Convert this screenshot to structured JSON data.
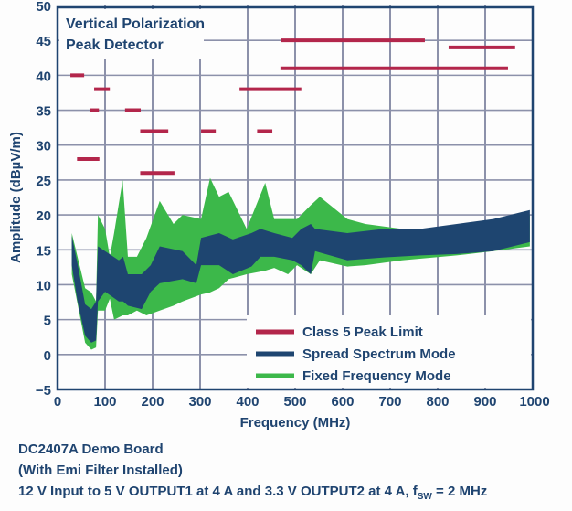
{
  "chart_data": {
    "type": "line",
    "title_lines": [
      "Vertical Polarization",
      "Peak Detector"
    ],
    "xlabel": "Frequency (MHz)",
    "ylabel": "Amplitude (dBµV/m)",
    "xlim": [
      0,
      1000
    ],
    "ylim": [
      -5,
      50
    ],
    "xticks": [
      0,
      100,
      200,
      300,
      400,
      500,
      600,
      700,
      800,
      900,
      1000
    ],
    "yticks": [
      -5,
      0,
      5,
      10,
      15,
      20,
      25,
      30,
      35,
      40,
      45,
      50
    ],
    "ytick_labels": [
      "−5",
      "0",
      "5",
      "10",
      "15",
      "20",
      "25",
      "30",
      "35",
      "40",
      "45",
      "50"
    ],
    "grid": true,
    "legend_position": "bottom-right",
    "colors": {
      "limit": "#b3264b",
      "spread": "#1e4570",
      "fixed": "#3cb84a",
      "grid": "#8c91aa",
      "text": "#1f4470"
    },
    "series": [
      {
        "name": "Class 5 Peak Limit",
        "type": "segments",
        "segments": [
          {
            "f": [
              27,
              56
            ],
            "y": 40
          },
          {
            "f": [
              41,
              88
            ],
            "y": 28
          },
          {
            "f": [
              68,
              87
            ],
            "y": 35
          },
          {
            "f": [
              77,
              110
            ],
            "y": 38
          },
          {
            "f": [
              142,
              175
            ],
            "y": 35
          },
          {
            "f": [
              174,
              233
            ],
            "y": 32
          },
          {
            "f": [
              174,
              246
            ],
            "y": 26
          },
          {
            "f": [
              302,
              333
            ],
            "y": 32
          },
          {
            "f": [
              420,
              452
            ],
            "y": 32
          },
          {
            "f": [
              383,
              513
            ],
            "y": 38
          },
          {
            "f": [
              471,
              773
            ],
            "y": 45
          },
          {
            "f": [
              469,
              948
            ],
            "y": 41
          },
          {
            "f": [
              823,
              963
            ],
            "y": 44
          }
        ]
      },
      {
        "name": "Spread Spectrum Mode",
        "type": "band",
        "f": [
          30,
          42,
          58,
          71,
          81,
          85,
          100,
          129,
          138,
          148,
          177,
          196,
          215,
          263,
          292,
          302,
          340,
          369,
          408,
          427,
          456,
          494,
          513,
          533,
          542,
          610,
          687,
          763,
          840,
          917,
          994
        ],
        "low": [
          12.8,
          7.6,
          2.7,
          1.7,
          2,
          7.6,
          9,
          7.6,
          7.6,
          7,
          6.5,
          9,
          10.2,
          10.8,
          10.2,
          12.8,
          12.8,
          11.5,
          12.6,
          14,
          14,
          13.5,
          12.8,
          11.5,
          14.8,
          13.5,
          13.9,
          14.2,
          14.4,
          14.8,
          16.1
        ],
        "high": [
          17,
          13,
          7.2,
          6.5,
          7.6,
          15.5,
          14.8,
          13.5,
          14,
          11.5,
          11.5,
          12.8,
          15.5,
          14.8,
          12.8,
          16.7,
          17.4,
          16.5,
          17.4,
          18,
          17.4,
          16.7,
          18,
          18.7,
          18,
          17.4,
          18,
          18,
          18.7,
          19.4,
          20.7
        ]
      },
      {
        "name": "Fixed Frequency Mode",
        "type": "band",
        "f": [
          30,
          58,
          71,
          81,
          85,
          100,
          110,
          119,
          137,
          148,
          167,
          187,
          215,
          244,
          263,
          302,
          321,
          340,
          360,
          398,
          437,
          456,
          485,
          504,
          533,
          552,
          610,
          648,
          725,
          840,
          917,
          994
        ],
        "low": [
          11.5,
          1.7,
          0.7,
          1,
          6.3,
          6.3,
          8,
          5,
          5.6,
          5.6,
          6.3,
          5.6,
          6.3,
          7,
          7.6,
          8.6,
          8.9,
          9.5,
          10.8,
          11.5,
          12,
          12.4,
          11.5,
          12.8,
          11.5,
          13.5,
          12.6,
          12.8,
          13.5,
          14.2,
          14.8,
          15.5
        ],
        "high": [
          17.4,
          9.5,
          8.9,
          7.6,
          20,
          18,
          14,
          17.4,
          25,
          14,
          14,
          16.7,
          22,
          18.7,
          20,
          19.4,
          25.3,
          22.6,
          23.3,
          18,
          24.6,
          19.4,
          19.4,
          19.4,
          21.4,
          22.6,
          19.4,
          18.7,
          18,
          18,
          18.7,
          20
        ]
      }
    ]
  },
  "footer": {
    "line1": "DC2407A Demo Board",
    "line2": "(With Emi Filter Installed)",
    "line3_main": "12 V Input to 5 V OUTPUT1 at 4 A and 3.3 V OUTPUT2 at 4 A, f",
    "line3_sub": "SW",
    "line3_tail": " = 2 MHz"
  }
}
